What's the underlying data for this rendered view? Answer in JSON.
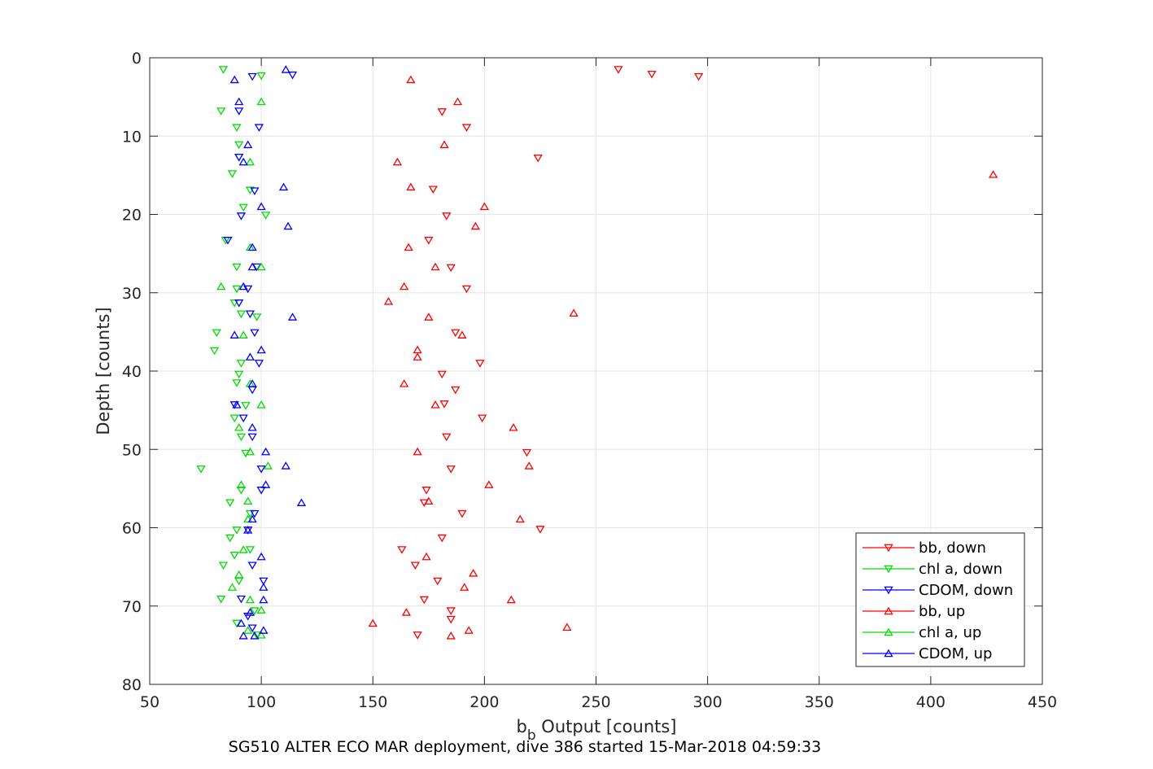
{
  "chart_data": {
    "type": "scatter",
    "caption": "SG510 ALTER ECO MAR deployment, dive 386 started 15-Mar-2018 04:59:33",
    "xlabel_main": "b",
    "xlabel_sub": "b",
    "xlabel_rest": " Output [counts]",
    "ylabel": "Depth [counts]",
    "xlim": [
      50,
      450
    ],
    "ylim": [
      0,
      80
    ],
    "y_reversed": true,
    "xticks": [
      50,
      100,
      150,
      200,
      250,
      300,
      350,
      400,
      450
    ],
    "yticks": [
      0,
      10,
      20,
      30,
      40,
      50,
      60,
      70,
      80
    ],
    "grid": true,
    "legend_position": "bottom-right",
    "series": [
      {
        "name": "bb, down",
        "color": "#ff0000",
        "marker": "triangle-down",
        "points": [
          [
            260,
            1.5
          ],
          [
            275,
            2.1
          ],
          [
            296,
            2.4
          ],
          [
            181,
            6.9
          ],
          [
            192,
            8.9
          ],
          [
            224,
            12.8
          ],
          [
            177,
            16.8
          ],
          [
            183,
            20.2
          ],
          [
            175,
            23.3
          ],
          [
            185,
            26.8
          ],
          [
            192,
            29.5
          ],
          [
            187,
            35.1
          ],
          [
            198,
            39
          ],
          [
            181,
            40.4
          ],
          [
            187,
            42.4
          ],
          [
            182,
            44.2
          ],
          [
            199,
            46
          ],
          [
            183,
            48.4
          ],
          [
            219,
            50.4
          ],
          [
            185,
            52.5
          ],
          [
            174,
            55.2
          ],
          [
            173,
            56.8
          ],
          [
            190,
            58.2
          ],
          [
            181,
            61.3
          ],
          [
            225,
            60.2
          ],
          [
            163,
            62.8
          ],
          [
            169,
            64.8
          ],
          [
            179,
            66.8
          ],
          [
            173,
            69.2
          ],
          [
            185,
            70.6
          ],
          [
            185,
            71.7
          ],
          [
            170,
            73.7
          ]
        ]
      },
      {
        "name": "chl a, down",
        "color": "#00dd00",
        "marker": "triangle-down",
        "points": [
          [
            83,
            1.5
          ],
          [
            100,
            2.3
          ],
          [
            82,
            6.8
          ],
          [
            89,
            8.9
          ],
          [
            90,
            11.1
          ],
          [
            90,
            12.7
          ],
          [
            87,
            14.8
          ],
          [
            95,
            16.9
          ],
          [
            92,
            19.1
          ],
          [
            102,
            20.1
          ],
          [
            84,
            23.3
          ],
          [
            89,
            26.7
          ],
          [
            89,
            29.5
          ],
          [
            88,
            31.3
          ],
          [
            91,
            32.7
          ],
          [
            98,
            33.1
          ],
          [
            80,
            35.1
          ],
          [
            79,
            37.4
          ],
          [
            91,
            39
          ],
          [
            90,
            40.4
          ],
          [
            89,
            41.5
          ],
          [
            93,
            44.4
          ],
          [
            88,
            46
          ],
          [
            91,
            48.4
          ],
          [
            93,
            50.5
          ],
          [
            73,
            52.5
          ],
          [
            91,
            55.2
          ],
          [
            86,
            56.8
          ],
          [
            95,
            58.2
          ],
          [
            89,
            60.3
          ],
          [
            86,
            61.3
          ],
          [
            88,
            63.5
          ],
          [
            83,
            64.8
          ],
          [
            90,
            66.8
          ],
          [
            82,
            69.1
          ],
          [
            97,
            70.6
          ],
          [
            89,
            72.2
          ],
          [
            98,
            73.7
          ],
          [
            95,
            62.8
          ]
        ]
      },
      {
        "name": "CDOM, down",
        "color": "#0000ff",
        "marker": "triangle-down",
        "points": [
          [
            96,
            2.4
          ],
          [
            114,
            2.2
          ],
          [
            90,
            6.8
          ],
          [
            99,
            8.9
          ],
          [
            90,
            12.7
          ],
          [
            85,
            23.3
          ],
          [
            98,
            26.7
          ],
          [
            94,
            29.5
          ],
          [
            90,
            31.3
          ],
          [
            95,
            32.7
          ],
          [
            97,
            35.1
          ],
          [
            99,
            39
          ],
          [
            96,
            42.4
          ],
          [
            92,
            46
          ],
          [
            96,
            48.4
          ],
          [
            100,
            52.5
          ],
          [
            100,
            55.2
          ],
          [
            97,
            58.2
          ],
          [
            94,
            60.3
          ],
          [
            96,
            64.8
          ],
          [
            101,
            66.8
          ],
          [
            91,
            69.1
          ],
          [
            94,
            71.3
          ],
          [
            96,
            72.8
          ],
          [
            97,
            17
          ],
          [
            91,
            20.2
          ],
          [
            88,
            44.3
          ]
        ]
      },
      {
        "name": "bb, up",
        "color": "#ff0000",
        "marker": "triangle-up",
        "points": [
          [
            167,
            2.8
          ],
          [
            188,
            5.6
          ],
          [
            182,
            11.1
          ],
          [
            161,
            13.3
          ],
          [
            428,
            14.9
          ],
          [
            167,
            16.5
          ],
          [
            200,
            19
          ],
          [
            196,
            21.5
          ],
          [
            166,
            24.2
          ],
          [
            178,
            26.7
          ],
          [
            164,
            29.2
          ],
          [
            157,
            31.1
          ],
          [
            240,
            32.6
          ],
          [
            175,
            33.1
          ],
          [
            190,
            35.4
          ],
          [
            170,
            37.3
          ],
          [
            170,
            38.2
          ],
          [
            164,
            41.6
          ],
          [
            178,
            44.3
          ],
          [
            213,
            47.2
          ],
          [
            170,
            50.3
          ],
          [
            220,
            52.1
          ],
          [
            202,
            54.5
          ],
          [
            175,
            56.6
          ],
          [
            216,
            58.9
          ],
          [
            174,
            63.7
          ],
          [
            195,
            65.8
          ],
          [
            191,
            67.6
          ],
          [
            212,
            69.2
          ],
          [
            165,
            70.8
          ],
          [
            150,
            72.2
          ],
          [
            237,
            72.7
          ],
          [
            193,
            73.1
          ],
          [
            185,
            73.8
          ]
        ]
      },
      {
        "name": "chl a, up",
        "color": "#00dd00",
        "marker": "triangle-up",
        "points": [
          [
            100,
            5.6
          ],
          [
            95,
            13.3
          ],
          [
            95,
            24.2
          ],
          [
            100,
            26.7
          ],
          [
            82,
            29.2
          ],
          [
            92,
            35.4
          ],
          [
            95,
            41.6
          ],
          [
            100,
            44.3
          ],
          [
            90,
            47.2
          ],
          [
            95,
            50.3
          ],
          [
            103,
            52.1
          ],
          [
            91,
            54.5
          ],
          [
            94,
            56.6
          ],
          [
            94,
            58.9
          ],
          [
            92,
            62.8
          ],
          [
            90,
            66
          ],
          [
            87,
            67.6
          ],
          [
            95,
            69.2
          ],
          [
            100,
            70.5
          ],
          [
            94,
            73.1
          ],
          [
            100,
            73.7
          ]
        ]
      },
      {
        "name": "CDOM, up",
        "color": "#0000ff",
        "marker": "triangle-up",
        "points": [
          [
            88,
            2.8
          ],
          [
            111,
            1.5
          ],
          [
            90,
            5.6
          ],
          [
            94,
            11.1
          ],
          [
            92,
            13.3
          ],
          [
            110,
            16.5
          ],
          [
            100,
            19
          ],
          [
            112,
            21.5
          ],
          [
            96,
            24.2
          ],
          [
            96,
            26.7
          ],
          [
            92,
            29.2
          ],
          [
            114,
            33.1
          ],
          [
            88,
            35.4
          ],
          [
            100,
            37.3
          ],
          [
            95,
            38.2
          ],
          [
            96,
            41.6
          ],
          [
            89,
            44.3
          ],
          [
            96,
            47.2
          ],
          [
            102,
            50.3
          ],
          [
            111,
            52.1
          ],
          [
            102,
            54.5
          ],
          [
            118,
            56.8
          ],
          [
            96,
            58.9
          ],
          [
            94,
            60.3
          ],
          [
            100,
            63.7
          ],
          [
            101,
            67.6
          ],
          [
            101,
            69.2
          ],
          [
            95,
            70.8
          ],
          [
            91,
            72.2
          ],
          [
            101,
            73.1
          ],
          [
            92,
            73.8
          ],
          [
            97,
            73.8
          ]
        ]
      }
    ]
  }
}
